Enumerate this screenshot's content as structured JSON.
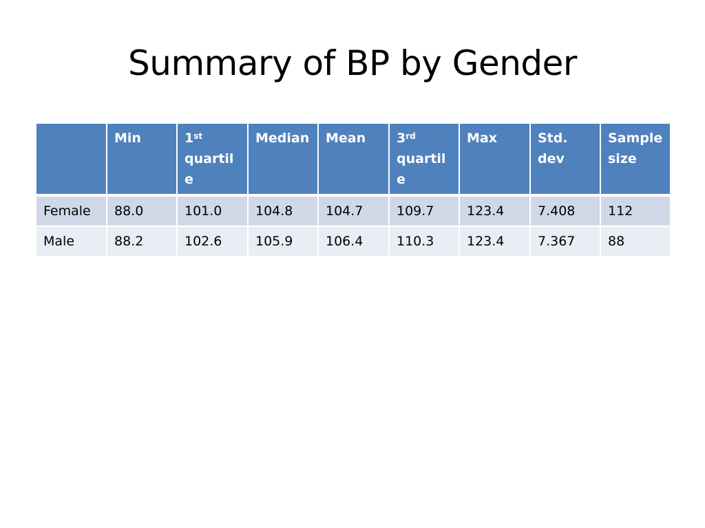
{
  "title": "Summary of BP by Gender",
  "table": {
    "headers": [
      {
        "base": "",
        "sup": "",
        "rest": ""
      },
      {
        "base": "Min",
        "sup": "",
        "rest": ""
      },
      {
        "base": "1",
        "sup": "st",
        "rest": "quartil e"
      },
      {
        "base": "Median",
        "sup": "",
        "rest": ""
      },
      {
        "base": "Mean",
        "sup": "",
        "rest": ""
      },
      {
        "base": "3",
        "sup": "rd",
        "rest": "quartil e"
      },
      {
        "base": "Max",
        "sup": "",
        "rest": ""
      },
      {
        "base": "Std. dev",
        "sup": "",
        "rest": ""
      },
      {
        "base": "Sample size",
        "sup": "",
        "rest": ""
      }
    ],
    "rows": [
      [
        "Female",
        "88.0",
        "101.0",
        "104.8",
        "104.7",
        "109.7",
        "123.4",
        "7.408",
        "112"
      ],
      [
        "Male",
        "88.2",
        "102.6",
        "105.9",
        "106.4",
        "110.3",
        "123.4",
        "7.367",
        "88"
      ]
    ]
  },
  "colors": {
    "header_bg": "#4f81bd",
    "row_odd_bg": "#d0d8e8",
    "row_even_bg": "#e9edf4"
  }
}
